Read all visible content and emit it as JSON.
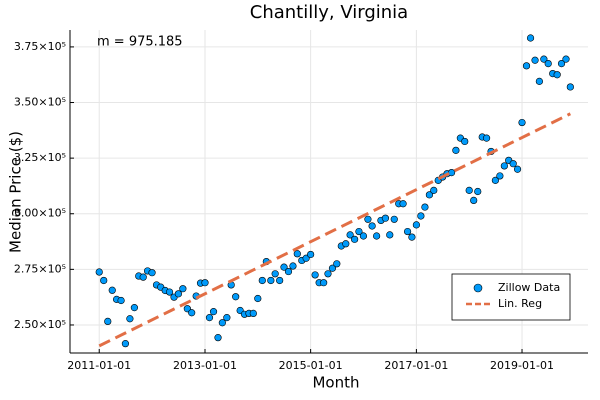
{
  "chart_data": {
    "type": "scatter",
    "title": "Chantilly, Virginia",
    "x_label": "Month",
    "y_label": "Median Price ($)",
    "annotation": "m = 975.185",
    "grid": true,
    "legend": "lower right",
    "xlim": [
      "2010-06-13",
      "2020-04-01"
    ],
    "xticks": [
      "2011-01-01",
      "2013-01-01",
      "2015-01-01",
      "2017-01-01",
      "2019-01-01"
    ],
    "ylim": [
      237400,
      382600
    ],
    "yticks": [
      {
        "value": 250000,
        "label": "2.50×10⁵"
      },
      {
        "value": 275000,
        "label": "2.75×10⁵"
      },
      {
        "value": 300000,
        "label": "3.00×10⁵"
      },
      {
        "value": 325000,
        "label": "3.25×10⁵"
      },
      {
        "value": 350000,
        "label": "3.50×10⁵"
      },
      {
        "value": 375000,
        "label": "3.75×10⁵"
      }
    ],
    "series": [
      {
        "name": "Zillow Data",
        "type": "scatter",
        "color": "#009AFA",
        "x": [
          "2011-01-01",
          "2011-02-01",
          "2011-03-01",
          "2011-04-01",
          "2011-05-01",
          "2011-06-01",
          "2011-07-01",
          "2011-08-01",
          "2011-09-01",
          "2011-10-01",
          "2011-11-01",
          "2011-12-01",
          "2012-01-01",
          "2012-02-01",
          "2012-03-01",
          "2012-04-01",
          "2012-05-01",
          "2012-06-01",
          "2012-07-01",
          "2012-08-01",
          "2012-09-01",
          "2012-10-01",
          "2012-11-01",
          "2012-12-01",
          "2013-01-01",
          "2013-02-01",
          "2013-03-01",
          "2013-04-01",
          "2013-05-01",
          "2013-06-01",
          "2013-07-01",
          "2013-08-01",
          "2013-09-01",
          "2013-10-01",
          "2013-11-01",
          "2013-12-01",
          "2014-01-01",
          "2014-02-01",
          "2014-03-01",
          "2014-04-01",
          "2014-05-01",
          "2014-06-01",
          "2014-07-01",
          "2014-08-01",
          "2014-09-01",
          "2014-10-01",
          "2014-11-01",
          "2014-12-01",
          "2015-01-01",
          "2015-02-01",
          "2015-03-01",
          "2015-04-01",
          "2015-05-01",
          "2015-06-01",
          "2015-07-01",
          "2015-08-01",
          "2015-09-01",
          "2015-10-01",
          "2015-11-01",
          "2015-12-01",
          "2016-01-01",
          "2016-02-01",
          "2016-03-01",
          "2016-04-01",
          "2016-05-01",
          "2016-06-01",
          "2016-07-01",
          "2016-08-01",
          "2016-09-01",
          "2016-10-01",
          "2016-11-01",
          "2016-12-01",
          "2017-01-01",
          "2017-02-01",
          "2017-03-01",
          "2017-04-01",
          "2017-05-01",
          "2017-06-01",
          "2017-07-01",
          "2017-08-01",
          "2017-09-01",
          "2017-10-01",
          "2017-11-01",
          "2017-12-01",
          "2018-01-01",
          "2018-02-01",
          "2018-03-01",
          "2018-04-01",
          "2018-05-01",
          "2018-06-01",
          "2018-07-01",
          "2018-08-01",
          "2018-09-01",
          "2018-10-01",
          "2018-11-01",
          "2018-12-01",
          "2019-01-01",
          "2019-02-01",
          "2019-03-01",
          "2019-04-01",
          "2019-05-01",
          "2019-06-01",
          "2019-07-01",
          "2019-08-01",
          "2019-09-01",
          "2019-10-01",
          "2019-11-01",
          "2019-12-01"
        ],
        "values": [
          273800,
          270000,
          251600,
          265600,
          261500,
          261000,
          241600,
          252800,
          257800,
          272000,
          271500,
          274300,
          273500,
          268000,
          267000,
          265500,
          264800,
          262500,
          264000,
          266300,
          257300,
          255500,
          263000,
          268800,
          269000,
          253300,
          256000,
          244300,
          251000,
          253300,
          268000,
          262700,
          256500,
          254800,
          255200,
          255200,
          261900,
          270000,
          278500,
          270000,
          273000,
          270000,
          276000,
          274000,
          276500,
          282000,
          279000,
          280000,
          281700,
          272500,
          269000,
          269000,
          273000,
          275500,
          277500,
          285500,
          286500,
          290500,
          288500,
          292000,
          290000,
          297500,
          294500,
          290000,
          297000,
          298000,
          290500,
          297500,
          304500,
          304500,
          292000,
          289500,
          295000,
          299000,
          303000,
          308500,
          310500,
          315000,
          316500,
          318000,
          318500,
          328500,
          334000,
          332500,
          310500,
          306000,
          310000,
          334500,
          334000,
          328000,
          315000,
          317000,
          321500,
          324000,
          322500,
          320000,
          341000,
          366500,
          379000,
          369000,
          359500,
          369500,
          367500,
          363000,
          362500,
          367500,
          369500,
          357000
        ]
      },
      {
        "name": "Lin. Reg",
        "type": "line",
        "color": "#E26F46",
        "dashed": true,
        "x": [
          "2011-01-01",
          "2019-12-01"
        ],
        "values": [
          240600,
          344945
        ]
      }
    ]
  }
}
